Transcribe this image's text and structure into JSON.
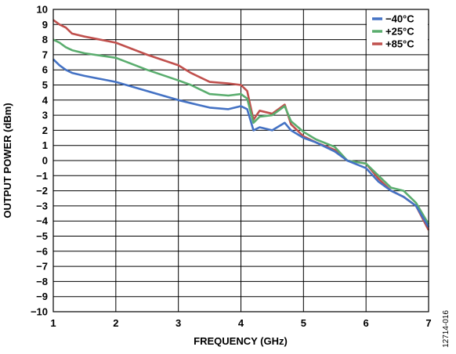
{
  "figure_id": "12714-016",
  "colors": {
    "-40C": "#4472c4",
    "+25C": "#5aad6e",
    "+85C": "#c0504d"
  },
  "chart_data": {
    "type": "line",
    "xlabel": "FREQUENCY (GHz)",
    "ylabel": "OUTPUT POWER (dBm)",
    "xlim": [
      1,
      7
    ],
    "ylim": [
      -10,
      10
    ],
    "x_ticks": [
      "1",
      "2",
      "3",
      "4",
      "5",
      "6",
      "7"
    ],
    "y_ticks": [
      "10",
      "9",
      "8",
      "7",
      "6",
      "5",
      "4",
      "3",
      "2",
      "1",
      "0",
      "−1",
      "−2",
      "−3",
      "−4",
      "−5",
      "−6",
      "−7",
      "−8",
      "−9",
      "−10"
    ],
    "grid": true,
    "legend_position": "top-right",
    "x": [
      1.0,
      1.1,
      1.2,
      1.3,
      1.5,
      2.0,
      2.5,
      3.0,
      3.2,
      3.5,
      3.8,
      4.0,
      4.1,
      4.2,
      4.3,
      4.5,
      4.7,
      4.8,
      5.0,
      5.2,
      5.5,
      5.7,
      6.0,
      6.2,
      6.4,
      6.6,
      6.8,
      7.0
    ],
    "series": [
      {
        "name": "−40°C",
        "color": "#4472c4",
        "values": [
          6.7,
          6.3,
          6.0,
          5.8,
          5.6,
          5.2,
          4.6,
          4.0,
          3.8,
          3.5,
          3.4,
          3.6,
          3.4,
          2.0,
          2.2,
          2.0,
          2.5,
          2.0,
          1.5,
          1.2,
          0.6,
          0.0,
          -0.5,
          -1.4,
          -2.0,
          -2.4,
          -3.0,
          -4.4
        ]
      },
      {
        "name": "+25°C",
        "color": "#5aad6e",
        "values": [
          8.0,
          7.8,
          7.5,
          7.3,
          7.1,
          6.8,
          6.0,
          5.3,
          5.0,
          4.4,
          4.3,
          4.4,
          4.1,
          2.5,
          2.9,
          3.0,
          3.6,
          2.6,
          1.9,
          1.4,
          0.9,
          0.0,
          -0.2,
          -1.0,
          -1.8,
          -2.0,
          -2.8,
          -4.2
        ]
      },
      {
        "name": "+85°C",
        "color": "#c0504d",
        "values": [
          9.3,
          9.0,
          8.8,
          8.4,
          8.2,
          7.8,
          7.0,
          6.3,
          5.8,
          5.2,
          5.1,
          5.0,
          4.6,
          2.7,
          3.3,
          3.1,
          3.7,
          2.4,
          1.6,
          1.2,
          0.7,
          0.0,
          -0.2,
          -1.2,
          -2.0,
          -2.4,
          -3.0,
          -4.6
        ]
      }
    ]
  }
}
